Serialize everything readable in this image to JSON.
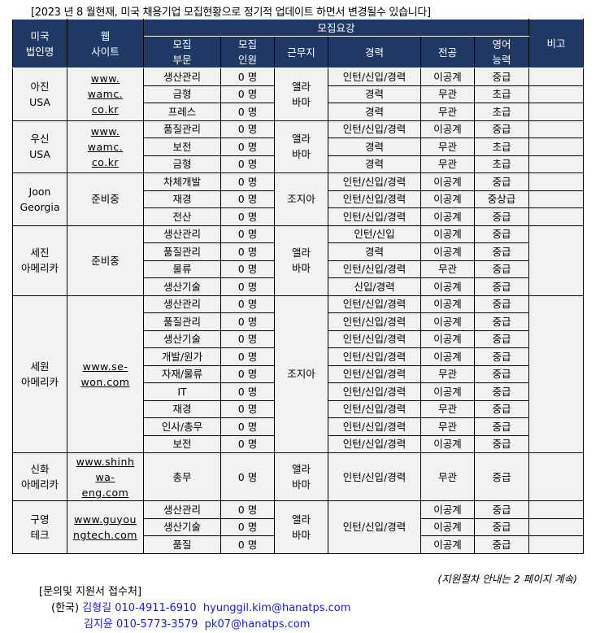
{
  "title": "[2023 년 8 월현재, 미국 채용기업 모집현황으로 정기적 업데이트 하면서 변경될수 있습니다]",
  "header": {
    "company": [
      "미국",
      "법인명"
    ],
    "website": [
      "웹",
      "사이트"
    ],
    "group": "모집요강",
    "dept": [
      "모집",
      "부문"
    ],
    "count": [
      "모집",
      "인원"
    ],
    "location": "근무지",
    "experience": "경력",
    "major": "전공",
    "english": [
      "영어",
      "능력"
    ],
    "remarks": "비고"
  },
  "companies": [
    {
      "name": [
        "아진",
        "USA"
      ],
      "site": [
        "www.",
        "wamc.",
        "co.kr"
      ],
      "location": [
        "앨라",
        "바마"
      ],
      "rows": [
        {
          "dept": "생산관리",
          "count": "0 명",
          "exp": "인턴/신입/경력",
          "major": "이공계",
          "english": "중급"
        },
        {
          "dept": "금형",
          "count": "0 명",
          "exp": "경력",
          "major": "무관",
          "english": "초급"
        },
        {
          "dept": "프레스",
          "count": "0 명",
          "exp": "경력",
          "major": "무관",
          "english": "초급"
        }
      ]
    },
    {
      "name": [
        "우신",
        "USA"
      ],
      "site": [
        "www.",
        "wamc.",
        "co.kr"
      ],
      "location": [
        "앨라",
        "바마"
      ],
      "rows": [
        {
          "dept": "품질관리",
          "count": "0 명",
          "exp": "인턴/신입/경력",
          "major": "이공계",
          "english": "중급"
        },
        {
          "dept": "보전",
          "count": "0 명",
          "exp": "경력",
          "major": "무관",
          "english": "초급"
        },
        {
          "dept": "금형",
          "count": "0 명",
          "exp": "경력",
          "major": "무관",
          "english": "초급"
        }
      ]
    },
    {
      "name": [
        "Joon",
        "Georgia"
      ],
      "site": [
        "준비중"
      ],
      "plain": true,
      "location": [
        "조지아"
      ],
      "rows": [
        {
          "dept": "차체개발",
          "count": "0 명",
          "exp": "인턴/신입/경력",
          "major": "이공계",
          "english": "중급"
        },
        {
          "dept": "재경",
          "count": "0 명",
          "exp": "인턴/신입/경력",
          "major": "이공계",
          "english": "중상급"
        },
        {
          "dept": "전산",
          "count": "0 명",
          "exp": "인턴/신입/경력",
          "major": "이공계",
          "english": "중급"
        }
      ]
    },
    {
      "name": [
        "세진",
        "아메리카"
      ],
      "site": [
        "준비중"
      ],
      "plain": true,
      "location": [
        "앨라",
        "바마"
      ],
      "rows": [
        {
          "dept": "생산관리",
          "count": "0 명",
          "exp": "인턴/신입",
          "major": "이공계",
          "english": "중급"
        },
        {
          "dept": "품질관리",
          "count": "0 명",
          "exp": "경력",
          "major": "이공계",
          "english": "중급"
        },
        {
          "dept": "물류",
          "count": "0 명",
          "exp": "인턴/신입/경력",
          "major": "무관",
          "english": "중급"
        },
        {
          "dept": "생산기술",
          "count": "0 명",
          "exp": "신입/경력",
          "major": "이공계",
          "english": "중급"
        }
      ]
    },
    {
      "name": [
        "세원",
        "아메리카"
      ],
      "site": [
        "www.se-",
        "won.com"
      ],
      "location": [
        "조지아"
      ],
      "rows": [
        {
          "dept": "생산관리",
          "count": "0 명",
          "exp": "인턴/신입/경력",
          "major": "이공계",
          "english": "중급"
        },
        {
          "dept": "품질관리",
          "count": "0 명",
          "exp": "인턴/신입/경력",
          "major": "이공계",
          "english": "중급"
        },
        {
          "dept": "생산기술",
          "count": "0 명",
          "exp": "인턴/신입/경력",
          "major": "이공계",
          "english": "중급"
        },
        {
          "dept": "개발/원가",
          "count": "0 명",
          "exp": "인턴/신입/경력",
          "major": "이공계",
          "english": "중급"
        },
        {
          "dept": "자재/물류",
          "count": "0 명",
          "exp": "인턴/신입/경력",
          "major": "무관",
          "english": "중급"
        },
        {
          "dept": "IT",
          "count": "0 명",
          "exp": "인턴/신입/경력",
          "major": "이공계",
          "english": "중급"
        },
        {
          "dept": "재경",
          "count": "0 명",
          "exp": "인턴/신입/경력",
          "major": "무관",
          "english": "중급"
        },
        {
          "dept": "인사/총무",
          "count": "0 명",
          "exp": "인턴/신입/경력",
          "major": "무관",
          "english": "중급"
        },
        {
          "dept": "보전",
          "count": "0 명",
          "exp": "인턴/신입/경력",
          "major": "이공계",
          "english": "중급"
        }
      ]
    },
    {
      "name": [
        "신화",
        "아메리카"
      ],
      "site": [
        "www.shinh",
        "wa-",
        "eng.com"
      ],
      "location": [
        "앨라",
        "바마"
      ],
      "tall": true,
      "rows": [
        {
          "dept": "총무",
          "count": "0 명",
          "exp": "인턴/신입/경력",
          "major": "무관",
          "english": "중급"
        }
      ]
    },
    {
      "name": [
        "구영",
        "테크"
      ],
      "site": [
        "www.guyou",
        "ngtech.com"
      ],
      "location": [
        "앨라",
        "바마"
      ],
      "merged_exp": "인턴/신입/경력",
      "rows": [
        {
          "dept": "생산관리",
          "count": "0 명",
          "major": "이공계",
          "english": "중급"
        },
        {
          "dept": "생산기술",
          "count": "0 명",
          "major": "이공계",
          "english": "중급"
        },
        {
          "dept": "품질",
          "count": "0 명",
          "major": "이공계",
          "english": "중급"
        }
      ]
    }
  ],
  "footer": {
    "continued": "(지원절차 안내는 2 페이지 계속)",
    "contact_title": "[문의및 지원서 접수처]",
    "region": "(한국)",
    "contacts": [
      {
        "name": "김형길",
        "phone": "010-4911-6910",
        "email": "hyunggil.kim@hanatps.com"
      },
      {
        "name": "김지윤",
        "phone": "010-5773-3579",
        "email": "pk07@hanatps.com"
      }
    ]
  },
  "colors": {
    "header_bg": "#1f3864",
    "cell_bg": "#f2f2f2",
    "contact": "#1a1adb"
  }
}
